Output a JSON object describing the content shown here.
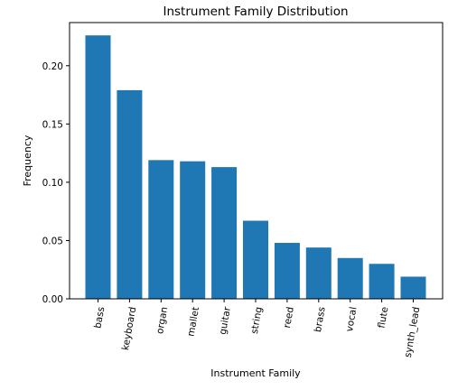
{
  "chart_data": {
    "type": "bar",
    "title": "Instrument Family Distribution",
    "xlabel": "Instrument Family",
    "ylabel": "Frequency",
    "categories": [
      "bass",
      "keyboard",
      "organ",
      "mallet",
      "guitar",
      "string",
      "reed",
      "brass",
      "vocal",
      "flute",
      "synth_lead"
    ],
    "values": [
      0.226,
      0.179,
      0.119,
      0.118,
      0.113,
      0.067,
      0.048,
      0.044,
      0.035,
      0.03,
      0.019
    ],
    "ylim": [
      0,
      0.237
    ],
    "yticks": [
      0.0,
      0.05,
      0.1,
      0.15,
      0.2
    ],
    "ytick_labels": [
      "0.00",
      "0.05",
      "0.10",
      "0.15",
      "0.20"
    ],
    "bar_color": "#1f77b4",
    "grid": false,
    "legend": false
  }
}
